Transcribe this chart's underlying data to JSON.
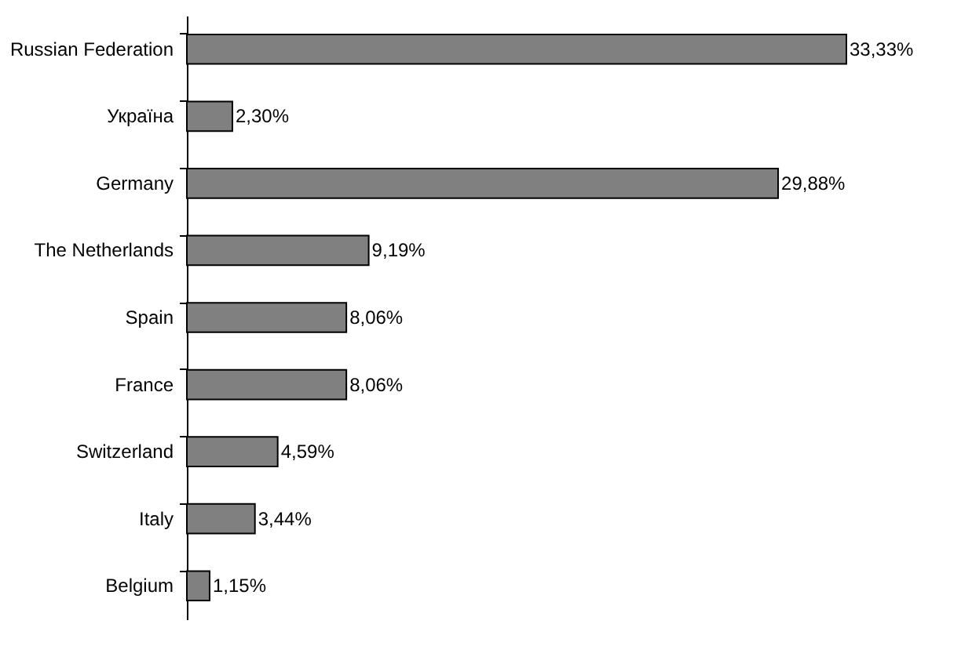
{
  "chart_data": {
    "type": "bar",
    "orientation": "horizontal",
    "categories": [
      "Russian Federation",
      "Україна",
      "Germany",
      "The Netherlands",
      "Spain",
      "France",
      "Switzerland",
      "Italy",
      "Belgium"
    ],
    "values": [
      33.33,
      2.3,
      29.88,
      9.19,
      8.06,
      8.06,
      4.59,
      3.44,
      1.15
    ],
    "value_labels": [
      "33,33%",
      "2,30%",
      "29,88%",
      "9,19%",
      "8,06%",
      "8,06%",
      "4,59%",
      "3,44%",
      "1,15%"
    ],
    "color": "#808080",
    "grid": false
  }
}
